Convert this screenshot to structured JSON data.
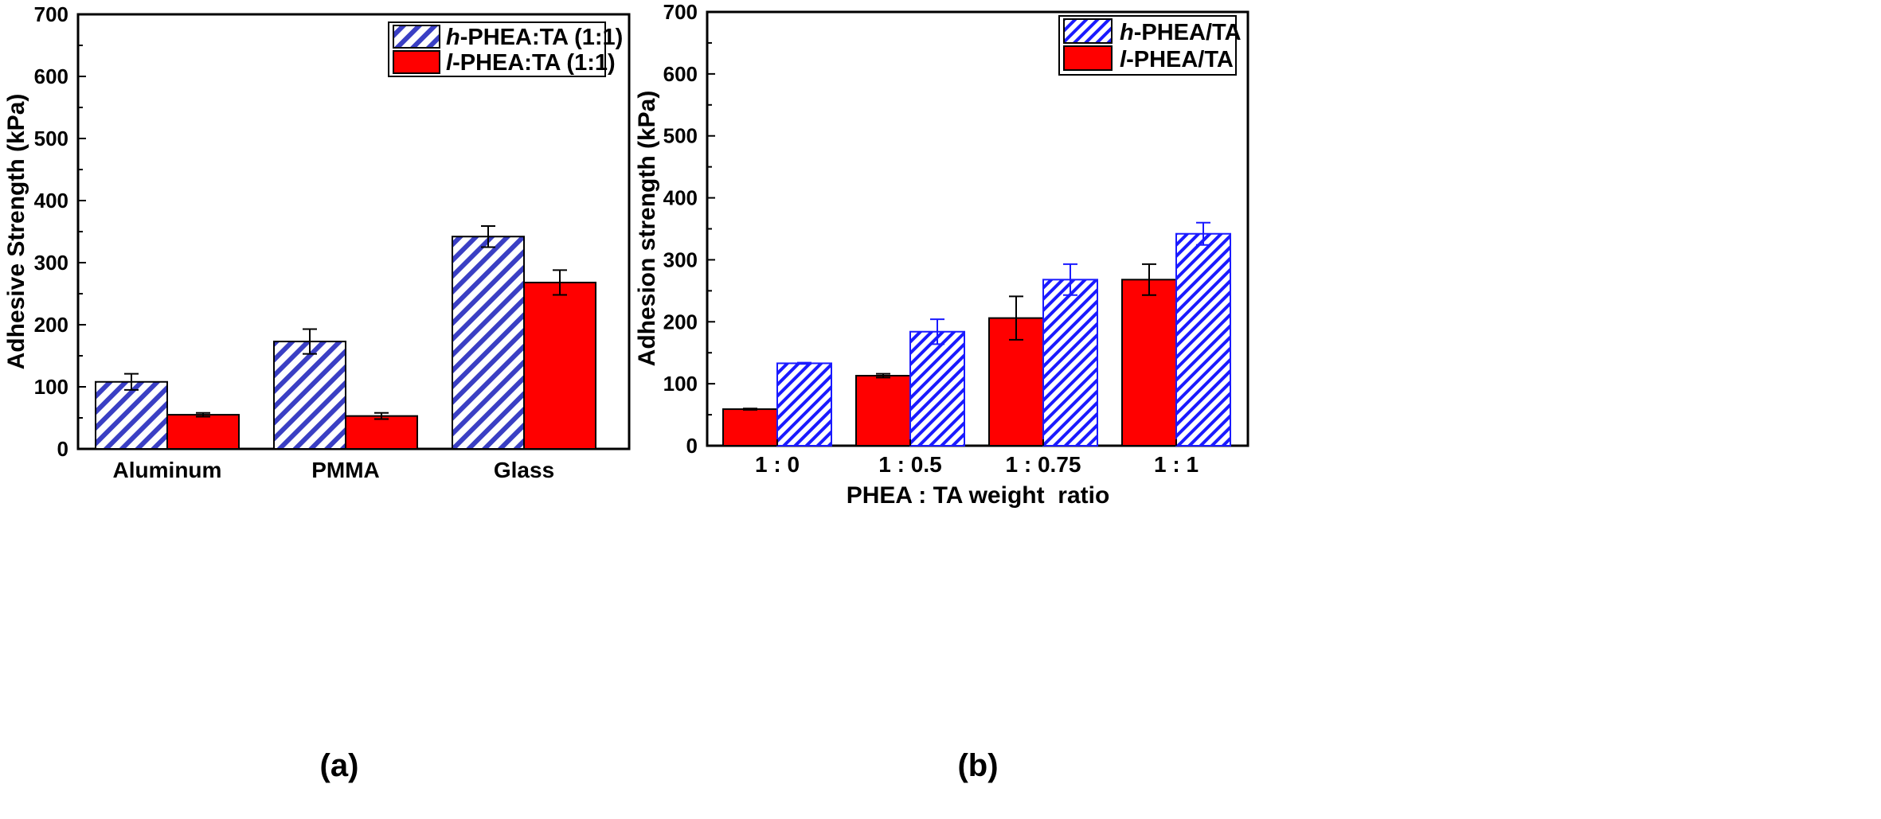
{
  "chart_data": [
    {
      "type": "bar",
      "panel_label": "(a)",
      "xlabel": "",
      "ylabel": "Adhesive Strength (kPa)",
      "ylim": [
        0,
        700
      ],
      "yticks": [
        0,
        100,
        200,
        300,
        400,
        500,
        600,
        700
      ],
      "categories": [
        "Aluminum",
        "PMMA",
        "Glass"
      ],
      "legend_position": "top-right",
      "series": [
        {
          "name_prefix": "h",
          "name_rest": "-PHEA:TA (1:1)",
          "style": "hatched",
          "values": [
            108,
            173,
            342
          ],
          "errors": [
            13,
            20,
            17
          ]
        },
        {
          "name_prefix": "l",
          "name_rest": "-PHEA:TA (1:1)",
          "style": "solid",
          "values": [
            55,
            53,
            268
          ],
          "errors": [
            3,
            5,
            20
          ]
        }
      ],
      "colors": {
        "hatch": "#3a3fc4",
        "red": "#ff0000",
        "edge": "#000000"
      }
    },
    {
      "type": "bar",
      "panel_label": "(b)",
      "xlabel": "PHEA : TA weight  ratio",
      "ylabel": "Adhesion strength (kPa)",
      "ylim": [
        0,
        700
      ],
      "yticks": [
        0,
        100,
        200,
        300,
        400,
        500,
        600,
        700
      ],
      "categories": [
        "1 : 0",
        "1 : 0.5",
        "1 : 0.75",
        "1 : 1"
      ],
      "legend_position": "top-right",
      "series": [
        {
          "name_prefix": "l",
          "name_rest": "-PHEA/TA",
          "style": "solid",
          "values": [
            59,
            113,
            206,
            268
          ],
          "errors": [
            1,
            3,
            35,
            25
          ]
        },
        {
          "name_prefix": "h",
          "name_rest": "-PHEA/TA",
          "style": "hatched",
          "values": [
            133,
            184,
            268,
            342
          ],
          "errors": [
            1,
            20,
            25,
            18
          ]
        }
      ],
      "colors": {
        "hatch": "#1a1aff",
        "red": "#ff0000",
        "edge": "#1a1aff"
      }
    }
  ]
}
